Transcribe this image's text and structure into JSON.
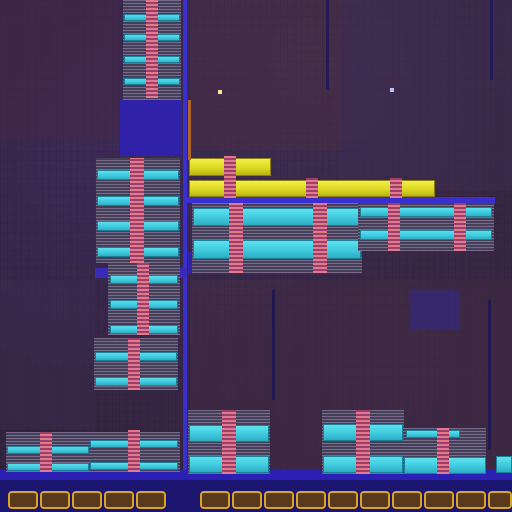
{
  "scene": {
    "kind": "microscope photo of an integrated circuit die",
    "palette": {
      "substrate": "#33243f",
      "metal_trace": "#3b2fd0",
      "cyan_cell": "#4fd6e6",
      "yellow_cell": "#e8e530",
      "pink_strap": "#d06a86",
      "pad_gold": "#d7a527"
    }
  }
}
